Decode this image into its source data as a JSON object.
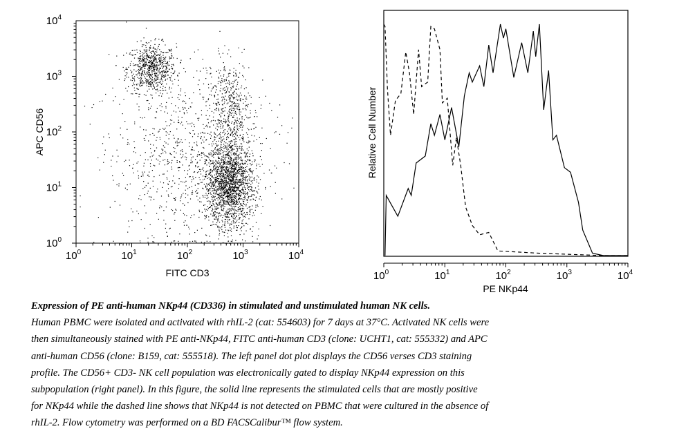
{
  "chart_data": [
    {
      "type": "scatter",
      "panel": "left",
      "xlabel": "FITC CD3",
      "ylabel": "APC CD56",
      "xscale": "log",
      "yscale": "log",
      "xlim": [
        1,
        10000
      ],
      "ylim": [
        1,
        10000
      ],
      "tick_labels": [
        {
          "base": "10",
          "exp": "0"
        },
        {
          "base": "10",
          "exp": "1"
        },
        {
          "base": "10",
          "exp": "2"
        },
        {
          "base": "10",
          "exp": "3"
        },
        {
          "base": "10",
          "exp": "4"
        }
      ],
      "clusters_log10": [
        {
          "name": "CD56+ CD3- NK cells",
          "cx": 1.35,
          "cy": 3.15,
          "sx": 0.22,
          "sy": 0.22,
          "n": 700
        },
        {
          "name": "CD3+ CD56- T cells",
          "cx": 2.75,
          "cy": 1.05,
          "sx": 0.22,
          "sy": 0.38,
          "n": 1800
        },
        {
          "name": "CD3+ CD56+ cells",
          "cx": 2.75,
          "cy": 2.4,
          "sx": 0.18,
          "sy": 0.45,
          "n": 500
        },
        {
          "name": "diffuse",
          "cx": 2.0,
          "cy": 1.6,
          "sx": 0.7,
          "sy": 0.8,
          "n": 900
        }
      ]
    },
    {
      "type": "line",
      "panel": "right",
      "xlabel": "PE NKp44",
      "ylabel": "Relative Cell Number",
      "xscale": "log",
      "xlim": [
        1,
        10000
      ],
      "ylim": [
        0,
        100
      ],
      "tick_labels": [
        {
          "base": "10",
          "exp": "0"
        },
        {
          "base": "10",
          "exp": "1"
        },
        {
          "base": "10",
          "exp": "2"
        },
        {
          "base": "10",
          "exp": "3"
        },
        {
          "base": "10",
          "exp": "4"
        }
      ],
      "series": [
        {
          "name": "stimulated (solid)",
          "style": "solid",
          "x_log10": [
            0.02,
            0.04,
            0.23,
            0.4,
            0.45,
            0.53,
            0.68,
            0.77,
            0.83,
            0.92,
            1.0,
            1.11,
            1.23,
            1.32,
            1.4,
            1.45,
            1.57,
            1.64,
            1.72,
            1.79,
            1.91,
            1.96,
            2.0,
            2.13,
            2.26,
            2.36,
            2.45,
            2.49,
            2.55,
            2.62,
            2.7,
            2.77,
            2.83,
            2.96,
            3.06,
            3.19,
            3.26,
            3.42,
            3.6,
            4.0
          ],
          "y": [
            0,
            26,
            17,
            29,
            26,
            40,
            43,
            57,
            52,
            61,
            50,
            64,
            47,
            69,
            79,
            75,
            82,
            73,
            91,
            79,
            100,
            94,
            98,
            77,
            92,
            79,
            97,
            86,
            100,
            63,
            80,
            50,
            52,
            38,
            36,
            23,
            11,
            1,
            0,
            0
          ]
        },
        {
          "name": "unstimulated (dashed)",
          "style": "dashed",
          "x_log10": [
            0.0,
            0.02,
            0.06,
            0.11,
            0.19,
            0.28,
            0.36,
            0.42,
            0.49,
            0.57,
            0.62,
            0.72,
            0.77,
            0.83,
            0.92,
            0.96,
            1.04,
            1.13,
            1.19,
            1.26,
            1.34,
            1.45,
            1.57,
            1.72,
            1.87,
            2.55,
            3.6,
            4.0
          ],
          "y": [
            100,
            99,
            72,
            52,
            67,
            70,
            88,
            79,
            61,
            89,
            73,
            75,
            99,
            98,
            89,
            66,
            68,
            39,
            51,
            39,
            21,
            13,
            9,
            10,
            2,
            1,
            0,
            0
          ]
        }
      ]
    }
  ],
  "caption": {
    "title": "Expression of PE anti-human NKp44 (CD336) in stimulated and unstimulated human NK cells.",
    "lines": [
      "Human PBMC were isolated and activated with rhIL-2 (cat: 554603) for 7 days at 37°C. Activated NK cells were",
      "then simultaneously stained with PE anti-NKp44, FITC anti-human CD3 (clone: UCHT1, cat: 555332) and APC",
      "anti-human CD56 (clone: B159, cat: 555518).  The left panel dot plot displays the CD56 verses CD3 staining",
      "profile.  The CD56+ CD3- NK cell population was electronically gated to display NKp44 expression on this",
      "subpopulation (right panel).  In this figure, the solid line represents the stimulated cells that are mostly positive",
      "for NKp44 while the dashed line shows that NKp44 is not detected on PBMC that were cultured in the absence of",
      "rhIL-2. Flow cytometry was performed on a BD FACSCalibur™ flow system."
    ]
  }
}
